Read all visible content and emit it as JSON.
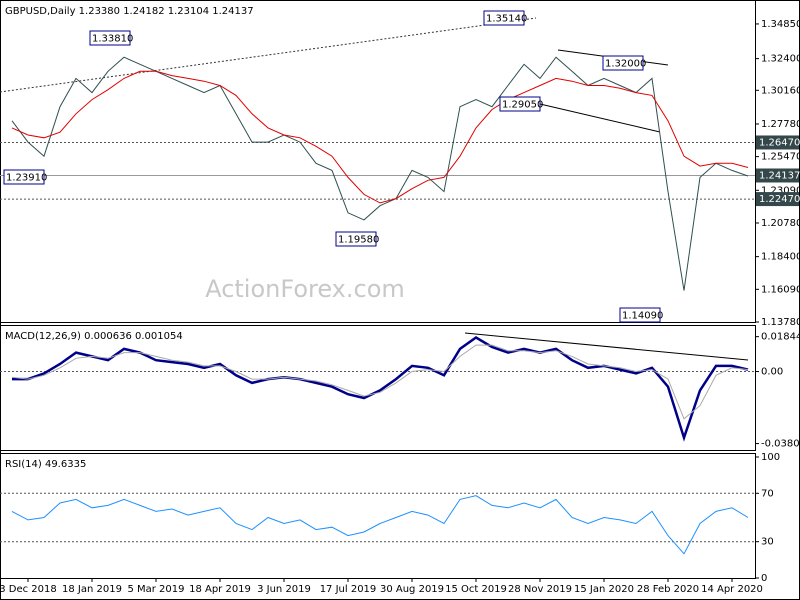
{
  "chart_data": [
    {
      "type": "line",
      "title": "GBPUSD,Daily  1.23380 1.24182 1.23104 1.24137",
      "watermark": "ActionForex.com",
      "ylim": [
        1.1378,
        1.3626
      ],
      "yticks": [
        {
          "value": 1.3485,
          "label": "1.34850"
        },
        {
          "value": 1.324,
          "label": "1.32400"
        },
        {
          "value": 1.3016,
          "label": "1.30160"
        },
        {
          "value": 1.2778,
          "label": "1.27780"
        },
        {
          "value": 1.2547,
          "label": "1.25470"
        },
        {
          "value": 1.2309,
          "label": "1.23090"
        },
        {
          "value": 1.2078,
          "label": "1.20780"
        },
        {
          "value": 1.184,
          "label": "1.18400"
        },
        {
          "value": 1.1609,
          "label": "1.16090"
        },
        {
          "value": 1.1378,
          "label": "1.13780"
        }
      ],
      "series": [
        {
          "color": "#2f4f4f",
          "values": [
            1.28,
            1.265,
            1.255,
            1.29,
            1.31,
            1.3,
            1.315,
            1.325,
            1.32,
            1.315,
            1.31,
            1.305,
            1.3,
            1.305,
            1.285,
            1.265,
            1.265,
            1.27,
            1.265,
            1.25,
            1.245,
            1.215,
            1.21,
            1.22,
            1.225,
            1.245,
            1.24,
            1.23,
            1.29,
            1.295,
            1.29,
            1.305,
            1.32,
            1.31,
            1.325,
            1.315,
            1.305,
            1.31,
            1.305,
            1.3,
            1.31,
            1.23,
            1.16,
            1.24,
            1.25,
            1.245,
            1.241
          ]
        },
        {
          "color": "#e00000",
          "values": [
            1.275,
            1.27,
            1.268,
            1.272,
            1.285,
            1.295,
            1.302,
            1.31,
            1.315,
            1.315,
            1.312,
            1.31,
            1.308,
            1.305,
            1.298,
            1.285,
            1.275,
            1.27,
            1.268,
            1.262,
            1.255,
            1.24,
            1.228,
            1.222,
            1.225,
            1.232,
            1.238,
            1.24,
            1.255,
            1.275,
            1.288,
            1.295,
            1.3,
            1.305,
            1.31,
            1.308,
            1.305,
            1.305,
            1.303,
            1.3,
            1.298,
            1.28,
            1.255,
            1.248,
            1.25,
            1.25,
            1.247
          ]
        }
      ],
      "levels": [
        {
          "value": 1.2647,
          "label": "1.26470",
          "line": "dotted"
        },
        {
          "value": 1.24137,
          "label": "1.24137",
          "line": "solid"
        },
        {
          "value": 1.2247,
          "label": "1.22470",
          "line": "dotted"
        }
      ],
      "annotations": [
        {
          "value": 1.3381,
          "label": "1.33810"
        },
        {
          "value": 1.3514,
          "label": "1.35140"
        },
        {
          "value": 1.2905,
          "label": "1.29050"
        },
        {
          "value": 1.32,
          "label": "1.32000"
        },
        {
          "value": 1.1958,
          "label": "1.19580"
        },
        {
          "value": 1.1409,
          "label": "1.14090"
        },
        {
          "value": 1.2391,
          "label": "1.23910"
        }
      ]
    },
    {
      "type": "line",
      "title": "MACD(12,26,9) 0.000636 0.001054",
      "ylim": [
        -0.0415,
        0.0225
      ],
      "yticks": [
        0.018442,
        {
          "value": 0,
          "label": "0.00"
        },
        -0.038095
      ],
      "levels": [
        0
      ],
      "series": [
        {
          "color": "#00008b",
          "values": [
            -0.004,
            -0.004,
            -0.001,
            0.004,
            0.01,
            0.008,
            0.006,
            0.012,
            0.01,
            0.006,
            0.005,
            0.004,
            0.002,
            0.004,
            -0.002,
            -0.006,
            -0.004,
            -0.003,
            -0.004,
            -0.006,
            -0.008,
            -0.012,
            -0.014,
            -0.01,
            -0.004,
            0.003,
            0.002,
            -0.002,
            0.012,
            0.018,
            0.013,
            0.01,
            0.012,
            0.01,
            0.012,
            0.006,
            0.002,
            0.003,
            0.001,
            -0.001,
            0.002,
            -0.008,
            -0.035,
            -0.01,
            0.003,
            0.003,
            0.001
          ]
        },
        {
          "color": "#a9a9a9",
          "values": [
            -0.003,
            -0.004,
            -0.002,
            0.002,
            0.007,
            0.008,
            0.007,
            0.01,
            0.01,
            0.008,
            0.006,
            0.005,
            0.003,
            0.003,
            0.0,
            -0.004,
            -0.004,
            -0.003,
            -0.004,
            -0.005,
            -0.007,
            -0.01,
            -0.013,
            -0.011,
            -0.006,
            0.0,
            0.001,
            0.0,
            0.008,
            0.014,
            0.014,
            0.011,
            0.011,
            0.01,
            0.011,
            0.008,
            0.004,
            0.003,
            0.002,
            0.0,
            0.001,
            -0.004,
            -0.025,
            -0.018,
            -0.002,
            0.002,
            0.001
          ]
        }
      ]
    },
    {
      "type": "line",
      "title": "RSI(14) 49.6335",
      "ylim": [
        0,
        100
      ],
      "yticks": [
        100,
        70,
        30,
        0
      ],
      "levels": [
        70,
        30
      ],
      "categories": [
        null,
        "3 Dec 2018",
        null,
        null,
        null,
        "18 Jan 2019",
        null,
        null,
        null,
        "5 Mar 2019",
        null,
        null,
        null,
        "18 Apr 2019",
        null,
        null,
        null,
        "3 Jun 2019",
        null,
        null,
        null,
        "17 Jul 2019",
        null,
        null,
        null,
        "30 Aug 2019",
        null,
        null,
        null,
        "15 Oct 2019",
        null,
        null,
        null,
        "28 Nov 2019",
        null,
        null,
        null,
        "15 Jan 2020",
        null,
        null,
        null,
        "28 Feb 2020",
        null,
        null,
        null,
        "14 Apr 2020",
        null
      ],
      "series": [
        {
          "color": "#1e90ff",
          "values": [
            55,
            48,
            50,
            62,
            65,
            58,
            60,
            65,
            60,
            55,
            57,
            52,
            55,
            58,
            45,
            40,
            50,
            45,
            48,
            40,
            42,
            35,
            38,
            45,
            50,
            55,
            52,
            45,
            65,
            68,
            60,
            58,
            62,
            58,
            65,
            50,
            45,
            50,
            48,
            45,
            55,
            35,
            20,
            45,
            55,
            58,
            50
          ]
        }
      ]
    }
  ]
}
